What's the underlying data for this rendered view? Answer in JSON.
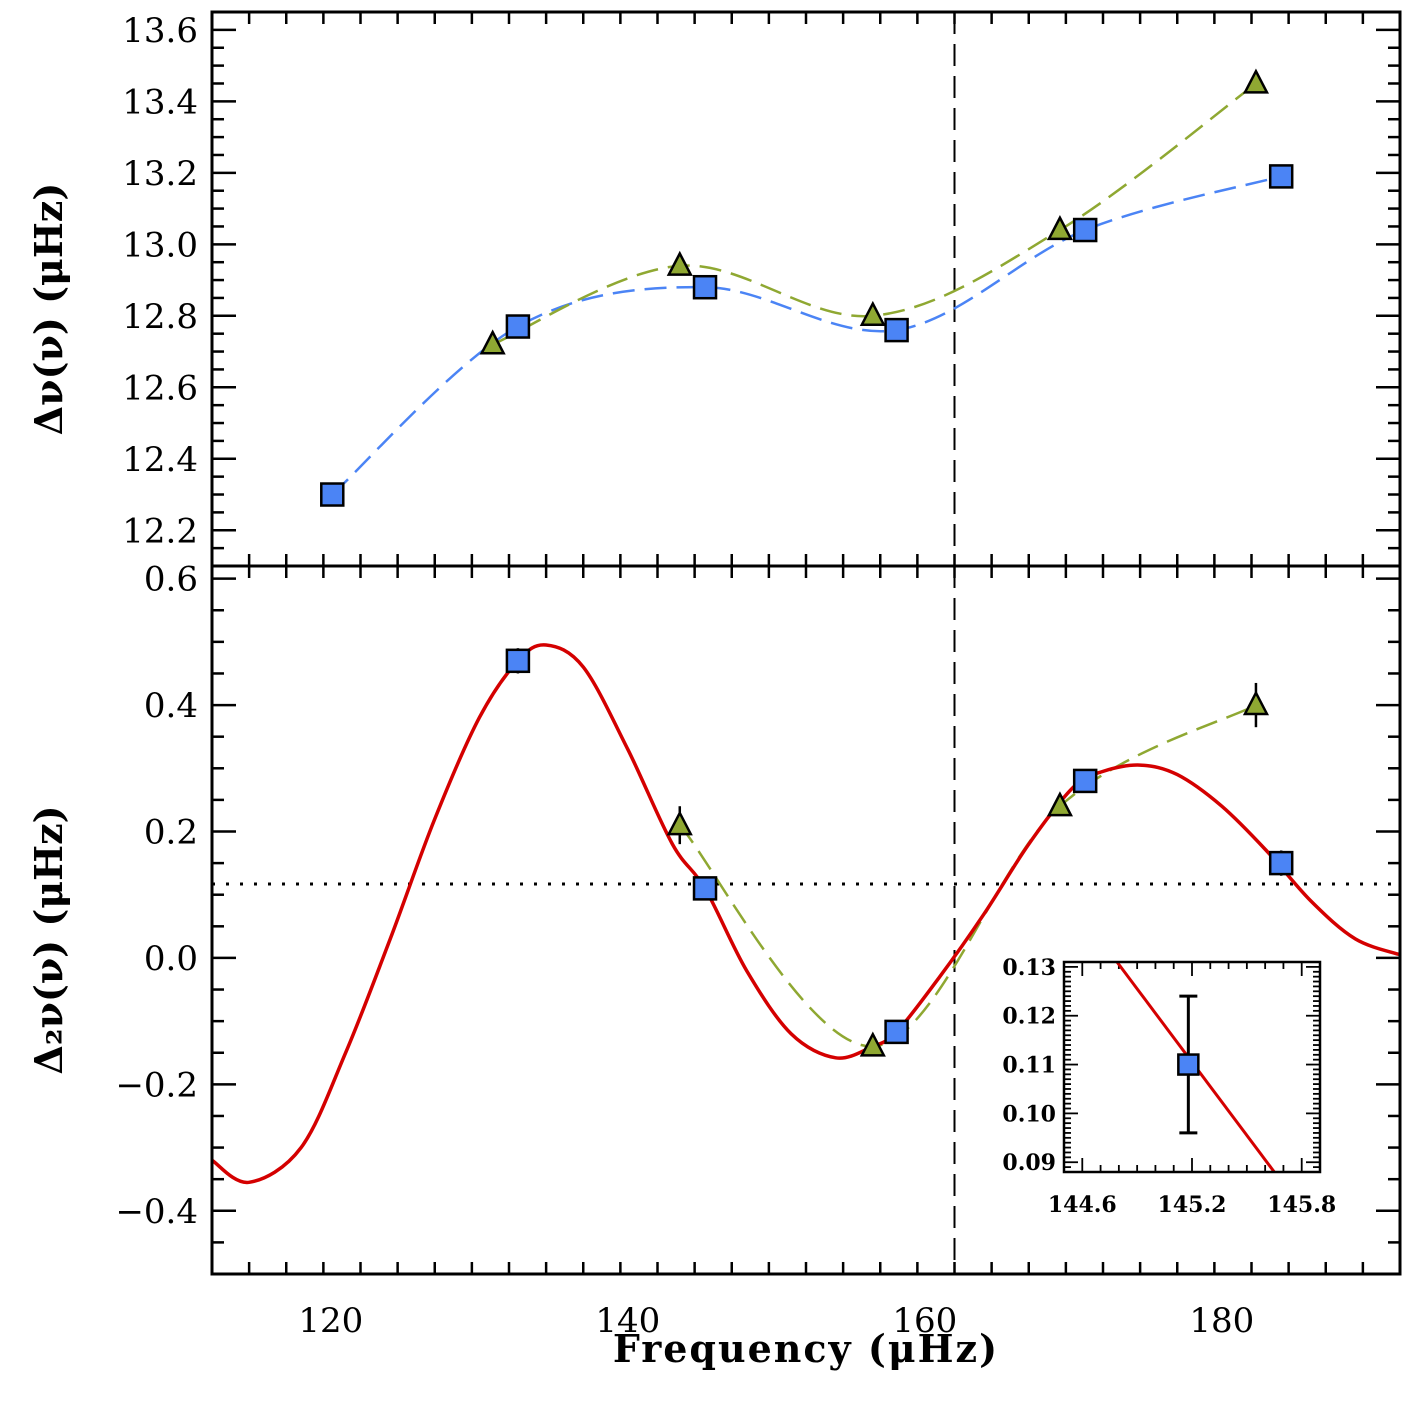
{
  "chart_data": [
    {
      "type": "scatter",
      "xlim": [
        112,
        192
      ],
      "ylim": [
        12.1,
        13.65
      ],
      "yticks": [
        "12.2",
        "12.4",
        "12.6",
        "12.8",
        "13.0",
        "13.2",
        "13.4",
        "13.6"
      ],
      "ylabel": "Δν(ν) (μHz)",
      "vline_x": 162,
      "series": [
        {
          "marker": "square",
          "color": "#4b84f5",
          "x": [
            120.1,
            132.6,
            145.2,
            158.1,
            170.8,
            184.0
          ],
          "y": [
            12.3,
            12.77,
            12.88,
            12.76,
            13.04,
            13.19
          ]
        },
        {
          "marker": "triangle",
          "color": "#8fa832",
          "x": [
            130.9,
            143.5,
            156.5,
            169.1,
            182.3
          ],
          "y": [
            12.72,
            12.94,
            12.8,
            13.04,
            13.45
          ]
        }
      ]
    },
    {
      "type": "scatter",
      "xlim": [
        112,
        192
      ],
      "ylim": [
        -0.5,
        0.62
      ],
      "xticks": [
        "120",
        "140",
        "160",
        "180"
      ],
      "yticks": [
        "−0.4",
        "−0.2",
        "0.0",
        "0.2",
        "0.4",
        "0.6"
      ],
      "xlabel": "Frequency (μHz)",
      "ylabel": "Δ₂ν(ν) (μHz)",
      "hline_y": 0.117,
      "vline_x": 162,
      "series": [
        {
          "marker": "square",
          "color": "#4b84f5",
          "x": [
            132.6,
            145.2,
            158.1,
            170.8,
            184.0
          ],
          "y": [
            0.47,
            0.11,
            -0.117,
            0.28,
            0.15
          ],
          "err": [
            0.02,
            0.01,
            0.01,
            0.01,
            0.02
          ]
        },
        {
          "marker": "triangle",
          "color": "#8fa832",
          "x": [
            143.5,
            156.5,
            169.1,
            182.3
          ],
          "y": [
            0.21,
            -0.14,
            0.24,
            0.4
          ],
          "err": [
            0.03,
            0.01,
            0.01,
            0.035
          ]
        }
      ],
      "fit": {
        "color": "#d40000",
        "x": [
          112,
          114.5,
          118,
          121,
          124,
          127,
          130,
          132.6,
          134.5,
          137,
          140,
          143,
          145.2,
          148,
          151,
          154,
          156.5,
          158.1,
          161,
          164,
          167,
          170,
          172,
          174.5,
          177,
          180,
          183,
          186,
          189,
          192
        ],
        "y": [
          -0.32,
          -0.355,
          -0.3,
          -0.15,
          0.03,
          0.22,
          0.38,
          0.47,
          0.495,
          0.46,
          0.33,
          0.18,
          0.11,
          -0.02,
          -0.12,
          -0.158,
          -0.14,
          -0.117,
          -0.03,
          0.07,
          0.18,
          0.27,
          0.295,
          0.305,
          0.29,
          0.24,
          0.17,
          0.09,
          0.03,
          0.005
        ]
      }
    },
    {
      "type": "scatter",
      "xlim": [
        144.5,
        145.9
      ],
      "ylim": [
        0.088,
        0.131
      ],
      "xticks": [
        "144.6",
        "145.2",
        "145.8"
      ],
      "yticks": [
        "0.09",
        "0.10",
        "0.11",
        "0.12",
        "0.13"
      ],
      "series": [
        {
          "marker": "square",
          "color": "#4b84f5",
          "x": [
            145.18
          ],
          "y": [
            0.11
          ],
          "err": [
            0.014
          ]
        }
      ],
      "fit": {
        "color": "#d40000",
        "x": [
          144.79,
          145.65
        ],
        "y": [
          0.131,
          0.088
        ]
      }
    }
  ]
}
